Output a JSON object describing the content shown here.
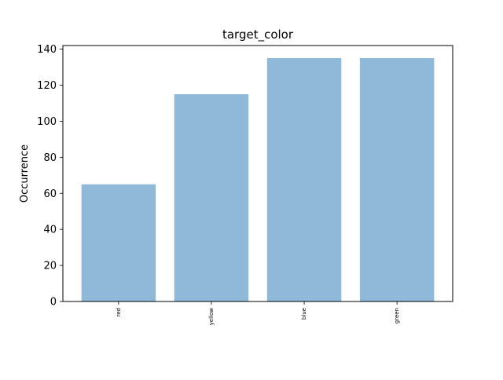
{
  "chart_data": {
    "type": "bar",
    "title": "target_color",
    "xlabel": "",
    "ylabel": "Occurrence",
    "categories": [
      "red",
      "yellow",
      "blue",
      "green"
    ],
    "values": [
      65,
      115,
      135,
      135
    ],
    "ylim": [
      0,
      142
    ],
    "yticks": [
      0,
      20,
      40,
      60,
      80,
      100,
      120,
      140
    ],
    "ytick_labels": [
      "0",
      "20",
      "40",
      "60",
      "80",
      "100",
      "120",
      "140"
    ],
    "grid": false,
    "legend": "none",
    "bar_color": "#8EB9D8",
    "xtick_rotation": "vertical"
  }
}
